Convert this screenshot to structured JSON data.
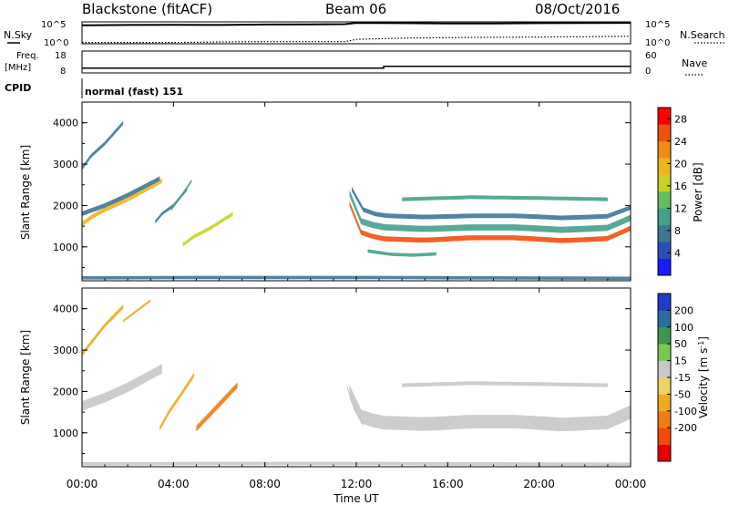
{
  "header": {
    "station": "Blackstone (fitACF)",
    "beam": "Beam 06",
    "date": "08/Oct/2016"
  },
  "top_panels": {
    "nsky_label": "N.Sky",
    "nsearch_label": "N.Search",
    "nsky_ticks": [
      "10^5",
      "10^0"
    ],
    "freq_label_1": "Freq.",
    "freq_label_2": "[MHz]",
    "freq_ticks": [
      "18",
      "8"
    ],
    "nave_label": "Nave",
    "nave_ticks": [
      "60",
      "0"
    ],
    "cpid_label": "CPID",
    "cpid_text": "normal (fast) 151"
  },
  "colors": {
    "power": [
      "#1a1aff",
      "#2850b4",
      "#3c7896",
      "#46a08c",
      "#64be5a",
      "#c8d228",
      "#f0b41e",
      "#f08c14",
      "#f0500f",
      "#ff0000"
    ],
    "velocity": [
      "#e60000",
      "#f04b0a",
      "#f07d14",
      "#f0aa1e",
      "#f0d264",
      "#c8c8c8",
      "#78c850",
      "#3c9650",
      "#2d6ea0",
      "#1e3cc8"
    ]
  },
  "chart_data": [
    {
      "type": "line",
      "title": "N.Sky / N.Search",
      "y_scale": "log",
      "ylim": [
        "10^0",
        "10^5"
      ],
      "series": [
        {
          "name": "N.Sky",
          "style": "solid",
          "x": [
            0,
            2,
            4,
            6,
            8,
            10,
            11.5,
            12,
            14,
            16,
            18,
            20,
            22,
            24
          ],
          "values": [
            16000,
            20000,
            22000,
            20000,
            25000,
            28000,
            30000,
            60000,
            50000,
            45000,
            45000,
            50000,
            55000,
            60000
          ]
        },
        {
          "name": "N.Search",
          "style": "dotted",
          "x": [
            0,
            2,
            4,
            6,
            8,
            10,
            11.5,
            12,
            14,
            16,
            18,
            20,
            22,
            24
          ],
          "values": [
            2,
            2,
            2,
            2.5,
            3,
            3,
            3,
            10,
            20,
            25,
            30,
            35,
            40,
            50
          ]
        }
      ]
    },
    {
      "type": "line",
      "title": "Freq. [MHz] / Nave",
      "series": [
        {
          "name": "Freq.",
          "x": [
            0,
            13.2,
            13.2,
            24
          ],
          "values": [
            10.2,
            10.2,
            11.0,
            11.0
          ]
        }
      ]
    },
    {
      "type": "heatmap",
      "ylabel": "Slant Range [km]",
      "xlabel": "Time UT",
      "xticks": [
        "00:00",
        "04:00",
        "08:00",
        "12:00",
        "16:00",
        "20:00",
        "00:00"
      ],
      "yticks": [
        "1000",
        "2000",
        "3000",
        "4000"
      ],
      "xlim": [
        0,
        24
      ],
      "ylim": [
        180,
        4500
      ],
      "colorbar_label": "Power [dB]",
      "colorbar_ticks": [
        "4",
        "8",
        "12",
        "16",
        "20",
        "24",
        "28"
      ],
      "colorbar_range": [
        0,
        30
      ],
      "bands": [
        {
          "t": [
            0,
            0.5,
            1,
            2,
            3.5
          ],
          "r": [
            1550,
            1750,
            1900,
            2150,
            2600
          ],
          "w": 110,
          "value": 19
        },
        {
          "t": [
            0,
            1,
            2,
            3.4
          ],
          "r": [
            1800,
            2000,
            2250,
            2650
          ],
          "w": 110,
          "value": 6
        },
        {
          "t": [
            0,
            0.4,
            1,
            1.8
          ],
          "r": [
            2900,
            3200,
            3500,
            4000
          ],
          "w": 90,
          "value": 8
        },
        {
          "t": [
            4.4,
            4.9,
            5.6,
            6.6
          ],
          "r": [
            1050,
            1250,
            1450,
            1800
          ],
          "w": 90,
          "value": 17
        },
        {
          "t": [
            3.2,
            3.5,
            4.0,
            4.6
          ],
          "r": [
            1600,
            1800,
            2000,
            2400
          ],
          "w": 80,
          "value": 8
        },
        {
          "t": [
            3.9,
            4.3,
            4.8
          ],
          "r": [
            1900,
            2200,
            2600
          ],
          "w": 70,
          "value": 9
        },
        {
          "t": [
            11.7,
            12.2,
            13,
            15,
            17,
            19,
            21,
            23,
            24
          ],
          "r": [
            2050,
            1350,
            1200,
            1160,
            1220,
            1220,
            1150,
            1200,
            1450
          ],
          "w": 120,
          "value": 24
        },
        {
          "t": [
            11.7,
            12.2,
            13,
            15,
            17,
            19,
            21,
            23,
            24
          ],
          "r": [
            2300,
            1620,
            1480,
            1430,
            1470,
            1470,
            1410,
            1460,
            1700
          ],
          "w": 150,
          "value": 11
        },
        {
          "t": [
            11.8,
            12.3,
            13,
            15,
            17,
            19,
            21,
            23,
            24
          ],
          "r": [
            2400,
            1900,
            1760,
            1720,
            1750,
            1750,
            1700,
            1740,
            1950
          ],
          "w": 110,
          "value": 7
        },
        {
          "t": [
            14,
            17,
            20,
            23
          ],
          "r": [
            2150,
            2200,
            2180,
            2150
          ],
          "w": 90,
          "value": 11
        },
        {
          "t": [
            12.5,
            13.5,
            14.5,
            15.5
          ],
          "r": [
            900,
            820,
            800,
            830
          ],
          "w": 80,
          "value": 10
        },
        {
          "t": [
            0,
            6,
            12,
            18,
            24
          ],
          "r": [
            250,
            260,
            260,
            250,
            240
          ],
          "w": 80,
          "value": 6
        }
      ]
    },
    {
      "type": "heatmap",
      "ylabel": "Slant Range [km]",
      "xlabel": "Time UT",
      "xticks": [
        "00:00",
        "04:00",
        "08:00",
        "12:00",
        "16:00",
        "20:00",
        "00:00"
      ],
      "yticks": [
        "1000",
        "2000",
        "3000",
        "4000"
      ],
      "xlim": [
        0,
        24
      ],
      "ylim": [
        180,
        4500
      ],
      "colorbar_label": "Velocity [m s^-1]",
      "colorbar_ticks": [
        "200",
        "100",
        "50",
        "15",
        "-15",
        "-50",
        "-100",
        "-200"
      ],
      "colorbar_range": [
        -250,
        250
      ],
      "bands": [
        {
          "t": [
            0,
            1,
            2,
            3.5
          ],
          "r": [
            1650,
            1850,
            2100,
            2550
          ],
          "w": 230,
          "value": 0
        },
        {
          "t": [
            0,
            0.5,
            1,
            1.8
          ],
          "r": [
            2900,
            3250,
            3600,
            4050
          ],
          "w": 100,
          "value": -70
        },
        {
          "t": [
            1.8,
            2.4,
            3.0
          ],
          "r": [
            3700,
            3950,
            4200
          ],
          "w": 60,
          "value": -60
        },
        {
          "t": [
            3.4,
            3.8,
            4.3,
            4.9
          ],
          "r": [
            1100,
            1500,
            1900,
            2400
          ],
          "w": 110,
          "value": -60
        },
        {
          "t": [
            5.0,
            5.6,
            6.2,
            6.8
          ],
          "r": [
            1100,
            1450,
            1800,
            2150
          ],
          "w": 140,
          "value": -130
        },
        {
          "t": [
            11.7,
            12.2,
            13,
            15,
            17,
            19,
            21,
            23,
            24
          ],
          "r": [
            2000,
            1400,
            1250,
            1210,
            1270,
            1270,
            1200,
            1250,
            1500
          ],
          "w": 330,
          "value": 0
        },
        {
          "t": [
            11.6,
            11.9,
            12.3
          ],
          "r": [
            2100,
            1600,
            1200
          ],
          "w": 90,
          "value": 40
        },
        {
          "t": [
            14,
            17,
            20,
            23
          ],
          "r": [
            2150,
            2200,
            2180,
            2150
          ],
          "w": 90,
          "value": 0
        },
        {
          "t": [
            0,
            6,
            12,
            18,
            24
          ],
          "r": [
            250,
            260,
            260,
            250,
            240
          ],
          "w": 80,
          "value": 30
        }
      ]
    }
  ]
}
